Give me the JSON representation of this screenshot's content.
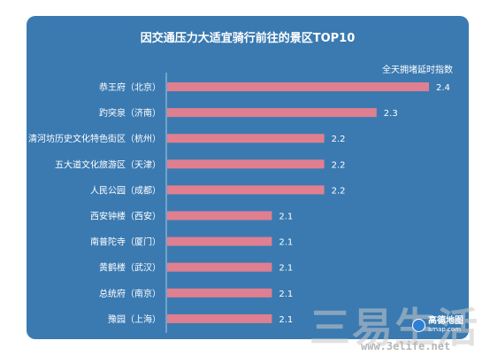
{
  "chart_data": {
    "type": "bar",
    "orientation": "horizontal",
    "title": "因交通压力大适宜骑行前往的景区TOP10",
    "legend_label": "全天拥堵延时指数",
    "categories": [
      "恭王府（北京）",
      "趵突泉（济南）",
      "清河坊历史文化特色街区（杭州）",
      "五大道文化旅游区（天津）",
      "人民公园（成都）",
      "西安钟楼（西安）",
      "南普陀寺（厦门）",
      "黄鹤楼（武汉）",
      "总统府（南京）",
      "豫园（上海）"
    ],
    "values": [
      2.4,
      2.3,
      2.2,
      2.2,
      2.2,
      2.1,
      2.1,
      2.1,
      2.1,
      2.1
    ],
    "value_labels": [
      "2.4",
      "2.3",
      "2.2",
      "2.2",
      "2.2",
      "2.1",
      "2.1",
      "2.1",
      "2.1",
      "2.1"
    ],
    "xlim": [
      1.9,
      2.4
    ],
    "grid": false,
    "colors": {
      "panel": "#3a7ab1",
      "bar": "#e07f90",
      "text": "#ffffff"
    }
  },
  "watermark": {
    "brand": "三易生活",
    "url": "www.3elife.net",
    "map_logo": "高德地图",
    "map_logo_sub": "amap.com"
  }
}
